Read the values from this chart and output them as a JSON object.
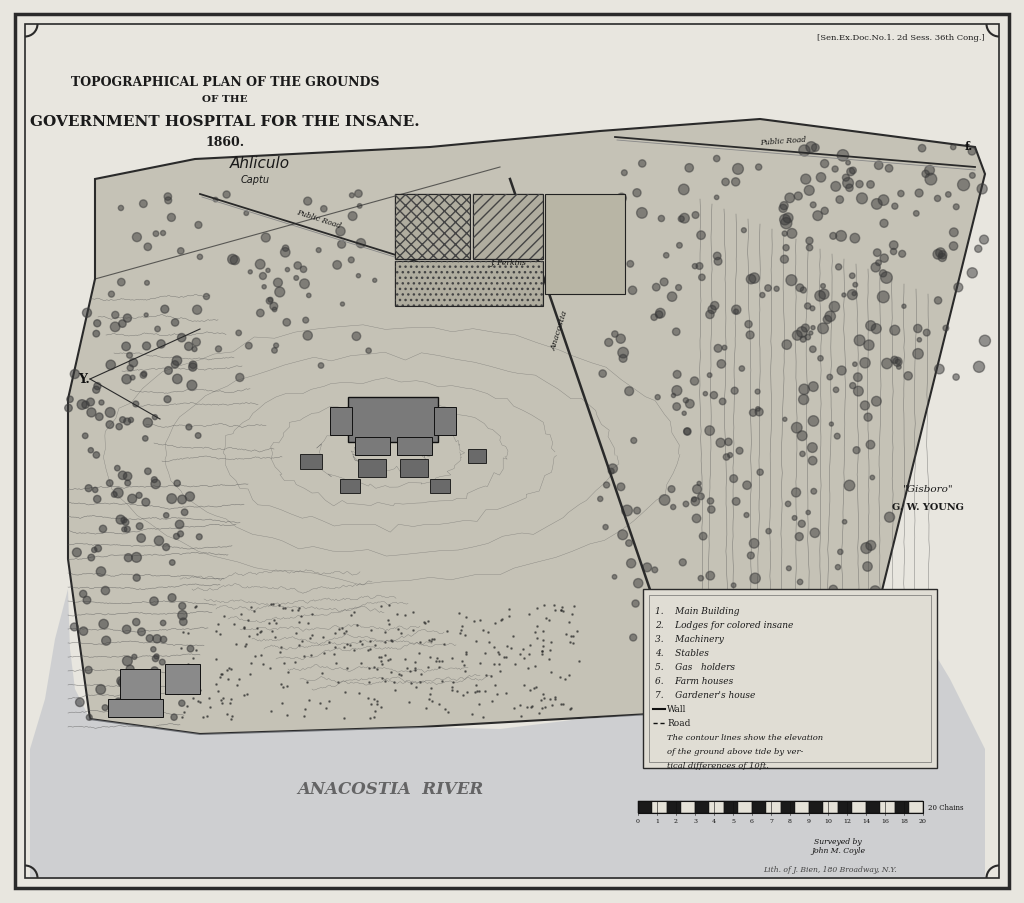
{
  "bg_color": "#e8e6df",
  "map_color": "#c8c5bb",
  "title_line1": "TOPOGRAPHICAL PLAN OF THE GROUNDS",
  "title_line2": "OF THE",
  "title_line3": "GOVERNMENT HOSPITAL FOR THE INSANE.",
  "title_line4": "1860.",
  "header_note": "[Sen.Ex.Doc.No.1. 2d Sess. 36th Cong.]",
  "credit_name": "\"Gisboro\"",
  "credit_sub": "G. W. YOUNG",
  "surveyed_by": "Surveyed by\nJohn M. Coyle",
  "lith_credit": "Lith. of J. Bien, 180 Broadway, N.Y.",
  "river_label": "ANACOSTIA  RIVER",
  "legend_items": [
    "1.    Main Building",
    "2.    Lodges for colored insane",
    "3.    Machinery",
    "4.    Stables",
    "5.    Gas   holders",
    "6.    Farm houses",
    "7.    Gardener's house",
    "Wall",
    "Road",
    "italic:The contour lines show the elevation",
    "italic:of the ground above tide by ver-",
    "italic:tical differences of 10ft."
  ],
  "text_color": "#1a1a1a",
  "water_color": "#adb0b8",
  "dark_color": "#2a2a2a"
}
